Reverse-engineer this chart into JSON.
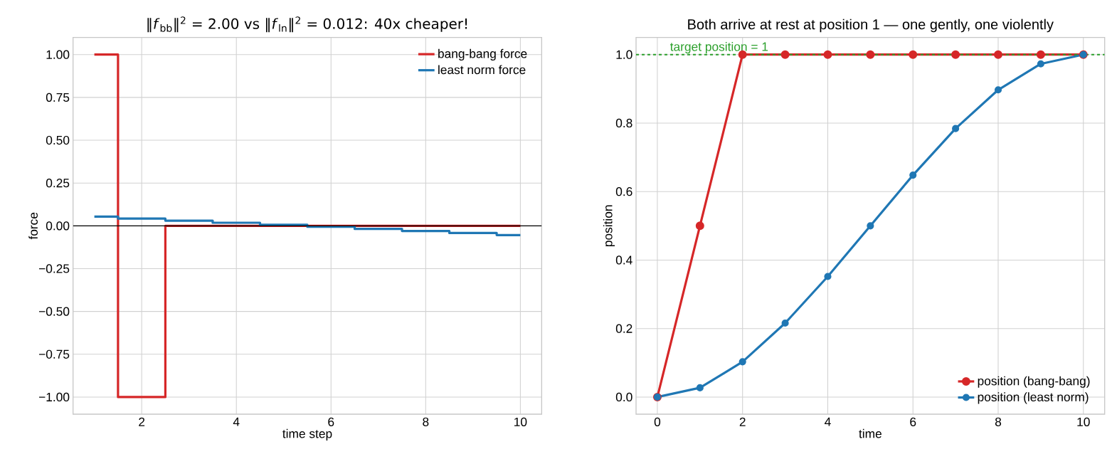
{
  "chart_data": [
    {
      "type": "step",
      "title": "‖*f*$_{bb}$‖$^{2}$ = 2.00 vs ‖*f*$_{ln}$‖$^{2}$ = 0.012: 40x cheaper!",
      "xlabel": "time step",
      "ylabel": "force",
      "x": [
        1,
        2,
        3,
        4,
        5,
        6,
        7,
        8,
        9,
        10
      ],
      "series": [
        {
          "name": "bang-bang force",
          "color": "#d62728",
          "values": [
            1,
            -1,
            0,
            0,
            0,
            0,
            0,
            0,
            0,
            0
          ]
        },
        {
          "name": "least norm force",
          "color": "#1f77b4",
          "values": [
            0.054,
            0.042,
            0.03,
            0.018,
            0.006,
            -0.006,
            -0.018,
            -0.03,
            -0.042,
            -0.054
          ]
        }
      ],
      "xlim": [
        0.55,
        10.45
      ],
      "xticks": [
        2,
        4,
        6,
        8,
        10
      ],
      "ylim": [
        -1.1,
        1.1
      ],
      "yticks": [
        {
          "value": -1,
          "label": "−1.00"
        },
        {
          "value": -0.75,
          "label": "−0.75"
        },
        {
          "value": -0.5,
          "label": "−0.50"
        },
        {
          "value": -0.25,
          "label": "−0.25"
        },
        {
          "value": 0,
          "label": "0.00"
        },
        {
          "value": 0.25,
          "label": "0.25"
        },
        {
          "value": 0.5,
          "label": "0.50"
        },
        {
          "value": 0.75,
          "label": "0.75"
        },
        {
          "value": 1,
          "label": "1.00"
        }
      ],
      "ref_lines": [
        {
          "axis": "y",
          "value": 0,
          "color": "#000000"
        }
      ],
      "grid": true,
      "legend": "top right",
      "marker": "none"
    },
    {
      "type": "line",
      "title": "Both arrive at rest at position 1 — one gently, one violently",
      "xlabel": "time",
      "ylabel": "position",
      "x": [
        0,
        1,
        2,
        3,
        4,
        5,
        6,
        7,
        8,
        9,
        10
      ],
      "series": [
        {
          "name": "position (bang-bang)",
          "color": "#d62728",
          "values": [
            0,
            0.5,
            1,
            1,
            1,
            1,
            1,
            1,
            1,
            1,
            1
          ]
        },
        {
          "name": "position (least norm)",
          "color": "#1f77b4",
          "values": [
            0,
            0.027,
            0.103,
            0.216,
            0.352,
            0.5,
            0.648,
            0.784,
            0.897,
            0.973,
            1
          ]
        }
      ],
      "xlim": [
        -0.5,
        10.5
      ],
      "xticks": [
        0,
        2,
        4,
        6,
        8,
        10
      ],
      "ylim": [
        -0.05,
        1.05
      ],
      "yticks": [
        {
          "value": 0,
          "label": "0.0"
        },
        {
          "value": 0.2,
          "label": "0.2"
        },
        {
          "value": 0.4,
          "label": "0.4"
        },
        {
          "value": 0.6,
          "label": "0.6"
        },
        {
          "value": 0.8,
          "label": "0.8"
        },
        {
          "value": 1,
          "label": "1.0"
        }
      ],
      "ref_lines": [
        {
          "axis": "y",
          "value": 1,
          "label": "target position = 1",
          "color": "#2ca02c",
          "line_style": "dashed"
        }
      ],
      "grid": true,
      "legend": "bottom right",
      "marker": "circle"
    }
  ]
}
